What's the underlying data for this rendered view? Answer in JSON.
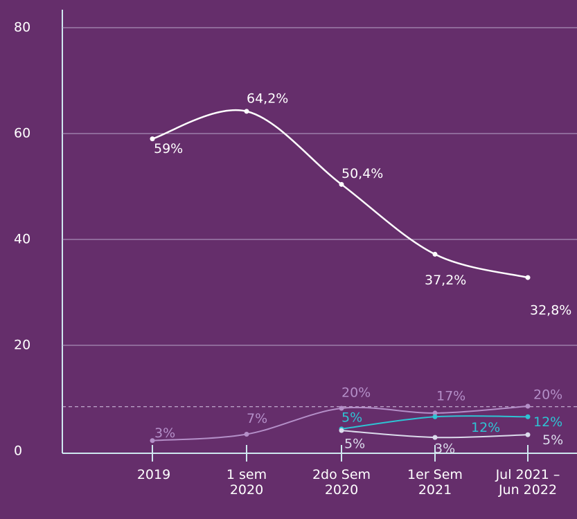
{
  "chart_data": {
    "type": "line",
    "categories": [
      "2019",
      "1 sem\n2020",
      "2do Sem\n2020",
      "1er Sem\n2021",
      "Jul 2021 –\nJun 2022"
    ],
    "series": [
      {
        "color": "#ffffff",
        "values": [
          59,
          64.2,
          50.4,
          37.2,
          32.8
        ],
        "value_labels": [
          "59%",
          "64,2%",
          "50,4%",
          "37,2%",
          "32,8%"
        ]
      },
      {
        "color": "#b48fc8",
        "values": [
          2,
          3.2,
          8.1,
          7.2,
          8.5
        ],
        "annotations": [
          "3%",
          "7%",
          "20%",
          "17%",
          "20%"
        ]
      },
      {
        "color": "#2ec4d4",
        "values": [
          null,
          null,
          4.2,
          6.5,
          6.5
        ],
        "annotations": [
          null,
          null,
          "5%",
          "12%",
          "12%"
        ]
      },
      {
        "color": "#dcdcec",
        "values": [
          null,
          null,
          3.9,
          2.6,
          3.1
        ],
        "annotations": [
          null,
          null,
          "5%",
          "3%",
          "5%"
        ]
      }
    ],
    "reference_line": 8.4,
    "ylim": [
      0,
      80
    ],
    "yticks": [
      0,
      20,
      40,
      60,
      80
    ],
    "grid": true
  }
}
